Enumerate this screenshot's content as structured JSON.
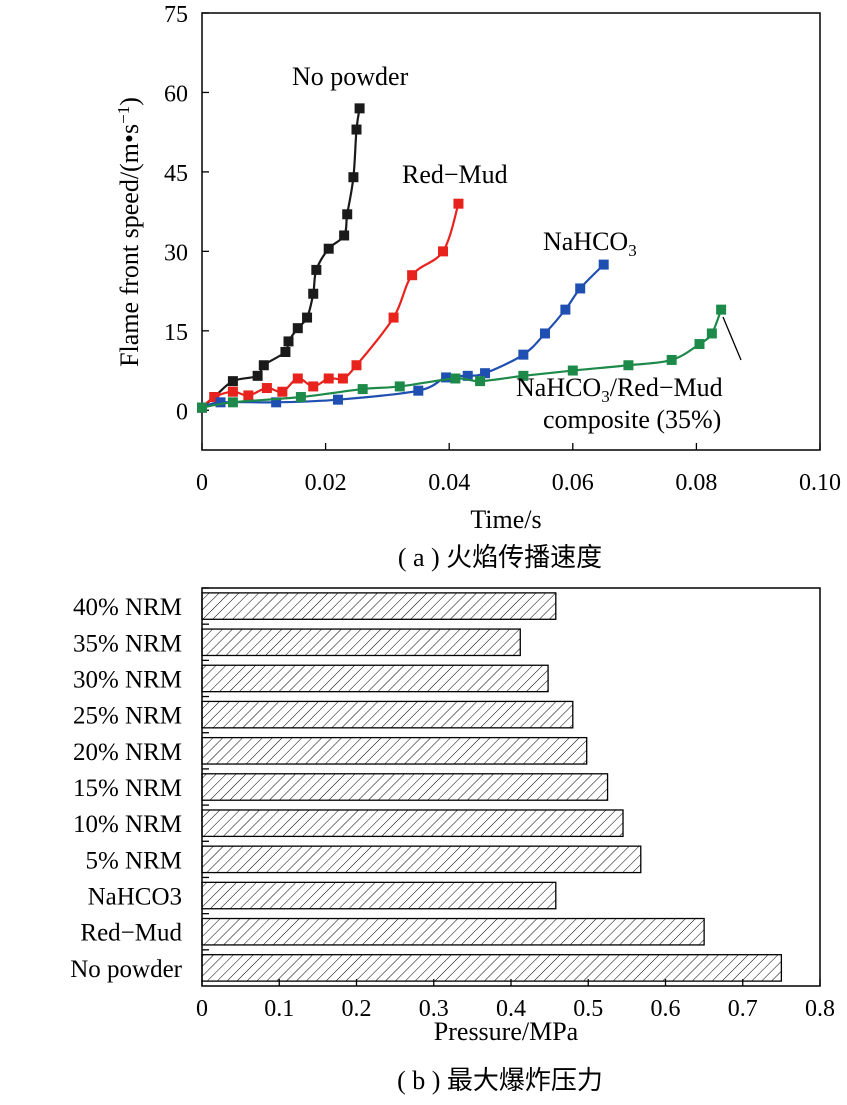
{
  "chart_data": [
    {
      "type": "line",
      "caption": "( a ) 火焰传播速度",
      "xlabel": "Time/s",
      "ylabel": "Flame front speed/(m•s",
      "ylabel_sup": "−1",
      "ylabel_end": ")",
      "xlim": [
        0,
        0.1
      ],
      "ylim": [
        -7.5,
        75
      ],
      "xticks": [
        "0",
        "0.02",
        "0.04",
        "0.06",
        "0.08",
        "0.10"
      ],
      "yticks": [
        "0",
        "15",
        "30",
        "45",
        "60",
        "75"
      ],
      "series": [
        {
          "name": "No powder",
          "color": "#1a1a1a",
          "x": [
            0,
            0.002,
            0.005,
            0.009,
            0.01,
            0.0135,
            0.014,
            0.0155,
            0.017,
            0.018,
            0.0185,
            0.0205,
            0.023,
            0.0235,
            0.0245,
            0.025,
            0.0255
          ],
          "y": [
            0.5,
            2.5,
            5.5,
            6.5,
            8.5,
            11,
            13,
            15.5,
            17.5,
            22,
            26.5,
            30.5,
            33,
            37,
            44,
            53,
            57
          ]
        },
        {
          "name": "Red−Mud",
          "color": "#e8231d",
          "x": [
            0,
            0.002,
            0.005,
            0.0075,
            0.0105,
            0.013,
            0.0155,
            0.018,
            0.0205,
            0.0228,
            0.025,
            0.031,
            0.034,
            0.039,
            0.0415
          ],
          "y": [
            0.5,
            2.5,
            3.5,
            2.8,
            4.2,
            3.5,
            6,
            4.5,
            6,
            6,
            8.5,
            17.5,
            25.5,
            30,
            39
          ]
        },
        {
          "name": "NaHCO",
          "name_sub": "3",
          "color": "#1f4fb0",
          "x": [
            0,
            0.003,
            0.012,
            0.022,
            0.035,
            0.0395,
            0.043,
            0.0458,
            0.052,
            0.0555,
            0.0588,
            0.0612,
            0.065
          ],
          "y": [
            0.5,
            1.5,
            1.5,
            2,
            3.7,
            6.2,
            6.5,
            7,
            10.5,
            14.5,
            19,
            23,
            27.5
          ]
        },
        {
          "name": "NaHCO",
          "name_sub": "3",
          "name_rest": "/Red−Mud",
          "name_line2": "composite (35%)",
          "color": "#1d8a4a",
          "x": [
            0,
            0.005,
            0.016,
            0.026,
            0.032,
            0.041,
            0.045,
            0.052,
            0.06,
            0.069,
            0.076,
            0.0805,
            0.0825,
            0.084
          ],
          "y": [
            0.5,
            1.5,
            2.5,
            4,
            4.5,
            6,
            5.5,
            6.5,
            7.5,
            8.5,
            9.5,
            12.5,
            14.5,
            19
          ]
        }
      ]
    },
    {
      "type": "bar",
      "orientation": "horizontal",
      "caption": "( b ) 最大爆炸压力",
      "xlabel": "Pressure/MPa",
      "xlim": [
        0,
        0.8
      ],
      "xticks": [
        "0",
        "0.1",
        "0.2",
        "0.3",
        "0.4",
        "0.5",
        "0.6",
        "0.7",
        "0.8"
      ],
      "categories": [
        "40% NRM",
        "35% NRM",
        "30% NRM",
        "25% NRM",
        "20% NRM",
        "15% NRM",
        "10% NRM",
        "5% NRM",
        "NaHCO3",
        "Red−Mud",
        "No powder"
      ],
      "values": [
        0.458,
        0.412,
        0.448,
        0.48,
        0.498,
        0.525,
        0.545,
        0.568,
        0.458,
        0.65,
        0.75
      ],
      "fill": "hatched"
    }
  ]
}
